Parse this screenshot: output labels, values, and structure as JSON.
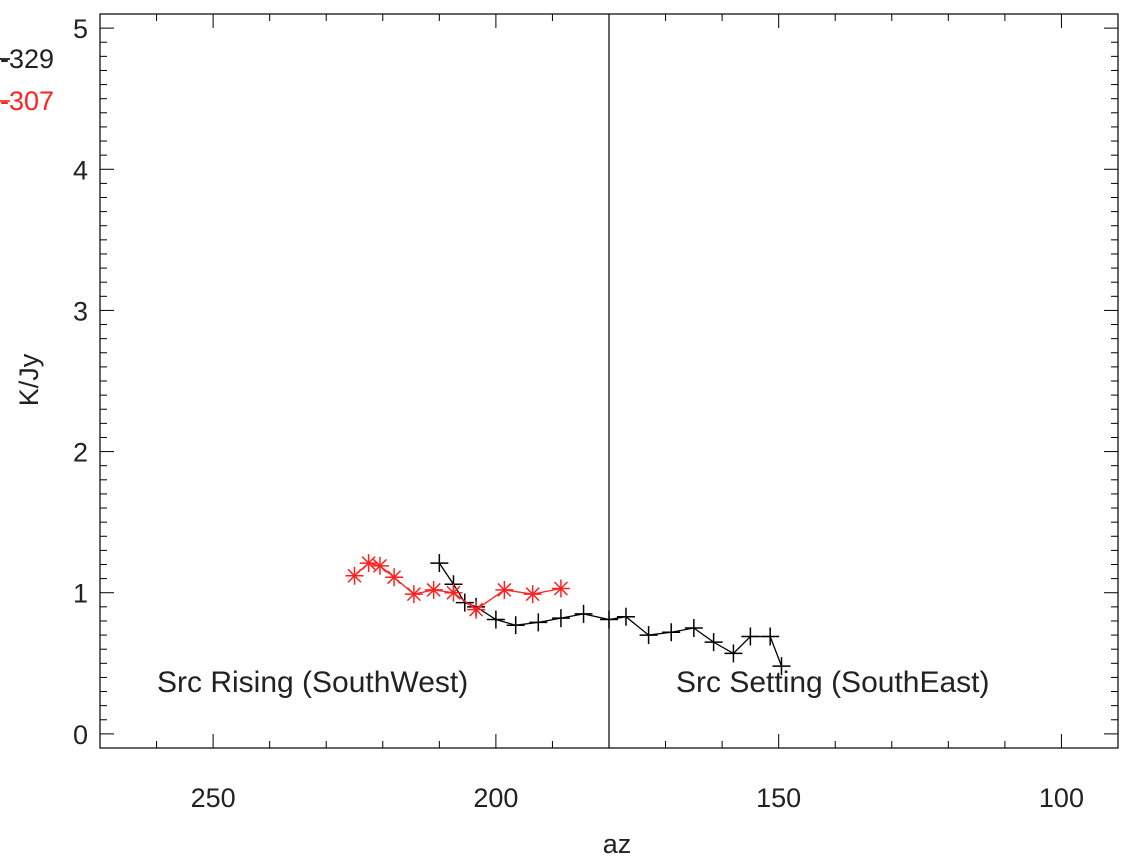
{
  "chart_data": {
    "type": "scatter",
    "xlabel": "az",
    "ylabel": "K/Jy",
    "xlim": [
      270,
      90
    ],
    "ylim": [
      -0.1,
      5.1
    ],
    "x_ticks": [
      250,
      200,
      150,
      100
    ],
    "y_ticks": [
      0,
      1,
      2,
      3,
      4,
      5
    ],
    "grid": false,
    "vertical_line_x": 180,
    "legend": [
      {
        "label": "-329",
        "color": "#000000"
      },
      {
        "label": "-307",
        "color": "#ff2020"
      }
    ],
    "annotations": [
      {
        "text": "Src Rising (SouthWest)",
        "x": 260,
        "y": 0.44
      },
      {
        "text": "Src Setting (SouthEast)",
        "x": 170,
        "y": 0.44
      }
    ],
    "series": [
      {
        "color": "#000000",
        "marker": "plus",
        "x": [
          210,
          207.5,
          205.5,
          203.5,
          200,
          196.5,
          192.5,
          188.5,
          184.5,
          180,
          177,
          173,
          169,
          165,
          161.5,
          158,
          155,
          151.5,
          149.5
        ],
        "y": [
          1.21,
          1.06,
          0.93,
          0.9,
          0.81,
          0.77,
          0.79,
          0.82,
          0.85,
          0.81,
          0.83,
          0.7,
          0.72,
          0.75,
          0.65,
          0.57,
          0.69,
          0.69,
          0.48
        ]
      },
      {
        "color": "#ff2020",
        "marker": "asterisk",
        "x": [
          225,
          222.5,
          220.5,
          218,
          214.5,
          211,
          207.5,
          203.5,
          198.5,
          193.5,
          188.5
        ],
        "y": [
          1.12,
          1.21,
          1.19,
          1.11,
          0.99,
          1.02,
          1.0,
          0.88,
          1.02,
          0.99,
          1.03
        ]
      }
    ]
  }
}
